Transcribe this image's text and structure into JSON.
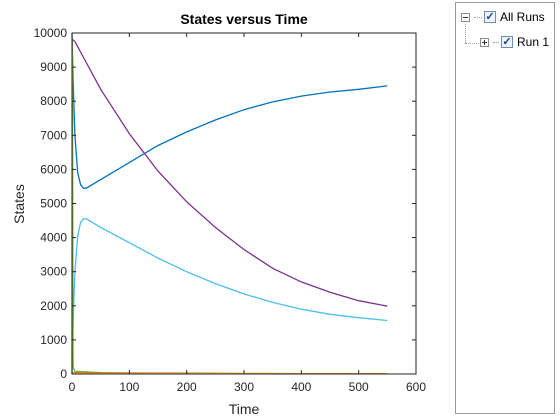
{
  "legend": {
    "root": {
      "label": "All Runs",
      "checked": true,
      "expander": "minus"
    },
    "children": [
      {
        "label": "Run 1",
        "checked": true,
        "expander": "plus"
      }
    ]
  },
  "chart_data": {
    "type": "line",
    "title": "States versus Time",
    "xlabel": "Time",
    "ylabel": "States",
    "xlim": [
      0,
      600
    ],
    "ylim": [
      0,
      10000
    ],
    "xticks": [
      0,
      100,
      200,
      300,
      400,
      500,
      600
    ],
    "yticks": [
      0,
      1000,
      2000,
      3000,
      4000,
      5000,
      6000,
      7000,
      8000,
      9000,
      10000
    ],
    "grid": false,
    "series": [
      {
        "color": "#0072BD",
        "x": [
          0,
          2,
          5,
          10,
          15,
          20,
          25,
          50,
          100,
          150,
          200,
          250,
          300,
          350,
          400,
          450,
          500,
          550
        ],
        "y": [
          9990,
          8600,
          7000,
          5900,
          5550,
          5450,
          5450,
          5700,
          6200,
          6700,
          7100,
          7450,
          7750,
          7980,
          8150,
          8270,
          8350,
          8450
        ]
      },
      {
        "color": "#7E2F8E",
        "x": [
          0,
          5,
          50,
          100,
          150,
          200,
          250,
          300,
          350,
          400,
          450,
          500,
          550
        ],
        "y": [
          9820,
          9750,
          8350,
          7050,
          5950,
          5050,
          4300,
          3650,
          3100,
          2700,
          2400,
          2150,
          1990
        ]
      },
      {
        "color": "#4DBEEE",
        "x": [
          0,
          2,
          5,
          10,
          15,
          20,
          25,
          50,
          100,
          150,
          200,
          250,
          300,
          350,
          400,
          450,
          500,
          550
        ],
        "y": [
          0,
          1500,
          3000,
          4050,
          4450,
          4550,
          4550,
          4300,
          3850,
          3400,
          3000,
          2650,
          2350,
          2100,
          1900,
          1750,
          1650,
          1570
        ]
      },
      {
        "color": "#77AC30",
        "x": [
          0,
          0.5,
          1,
          2,
          5,
          50,
          100,
          200,
          300,
          400,
          500,
          550
        ],
        "y": [
          0,
          9800,
          7000,
          200,
          80,
          40,
          30,
          20,
          15,
          12,
          10,
          10
        ]
      },
      {
        "color": "#D95319",
        "x": [
          0,
          5,
          50,
          100,
          200,
          300,
          400,
          500,
          550
        ],
        "y": [
          20,
          40,
          30,
          25,
          20,
          15,
          10,
          10,
          10
        ]
      },
      {
        "color": "#EDB120",
        "x": [
          0,
          5,
          50,
          100,
          200,
          300,
          400,
          500,
          550
        ],
        "y": [
          10,
          20,
          15,
          12,
          10,
          8,
          6,
          5,
          5
        ]
      }
    ]
  }
}
